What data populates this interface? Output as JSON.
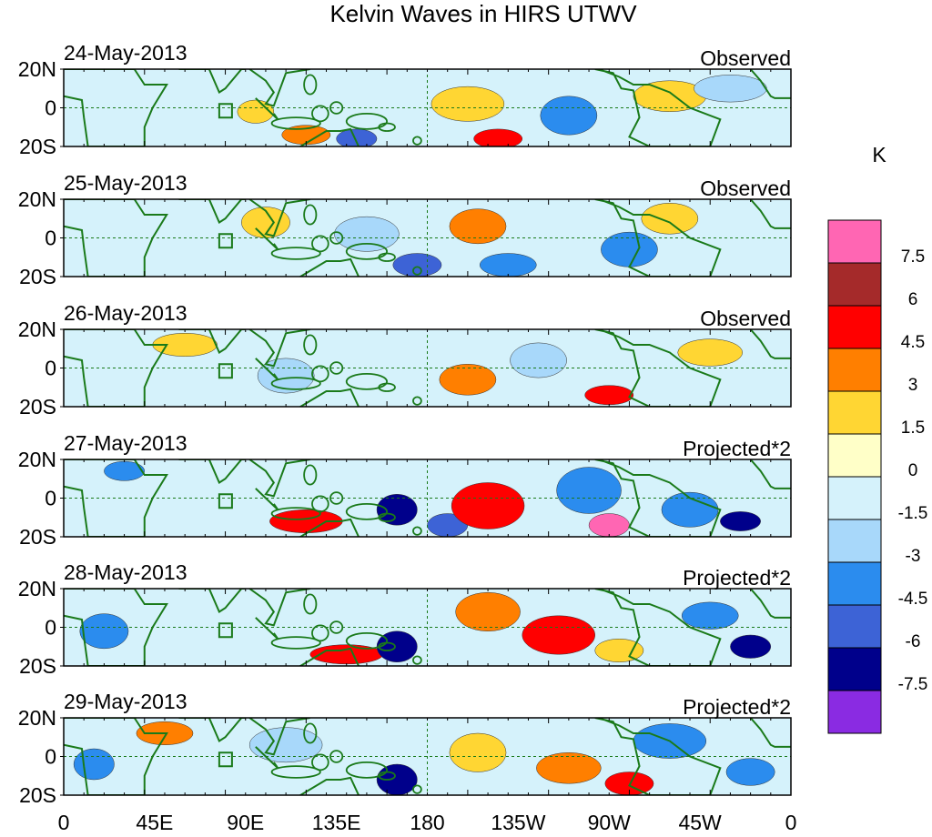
{
  "chart_data": {
    "type": "heatmap",
    "title": "Kelvin Waves in HIRS UTWV",
    "units_label": "K",
    "x_ticks": [
      "0",
      "45E",
      "90E",
      "135E",
      "180",
      "135W",
      "90W",
      "45W",
      "0"
    ],
    "y_ticks": [
      "20N",
      "0",
      "20S"
    ],
    "lon_range": [
      0,
      360
    ],
    "lat_range": [
      -20,
      20
    ],
    "panels": [
      {
        "date": "24-May-2013",
        "label": "Observed"
      },
      {
        "date": "25-May-2013",
        "label": "Observed"
      },
      {
        "date": "26-May-2013",
        "label": "Observed"
      },
      {
        "date": "27-May-2013",
        "label": "Projected*2"
      },
      {
        "date": "28-May-2013",
        "label": "Projected*2"
      },
      {
        "date": "29-May-2013",
        "label": "Projected*2"
      }
    ],
    "colorbar": {
      "levels": [
        "7.5",
        "6",
        "4.5",
        "3",
        "1.5",
        "0",
        "-1.5",
        "-3",
        "-4.5",
        "-6",
        "-7.5"
      ],
      "colors": [
        "#ff66b3",
        "#a52a2a",
        "#ff0000",
        "#ff7f00",
        "#ffd633",
        "#ffffc8",
        "#d5f2fb",
        "#a8d8fa",
        "#2b8cee",
        "#3d63d6",
        "#00008b",
        "#8a2be2"
      ]
    }
  }
}
